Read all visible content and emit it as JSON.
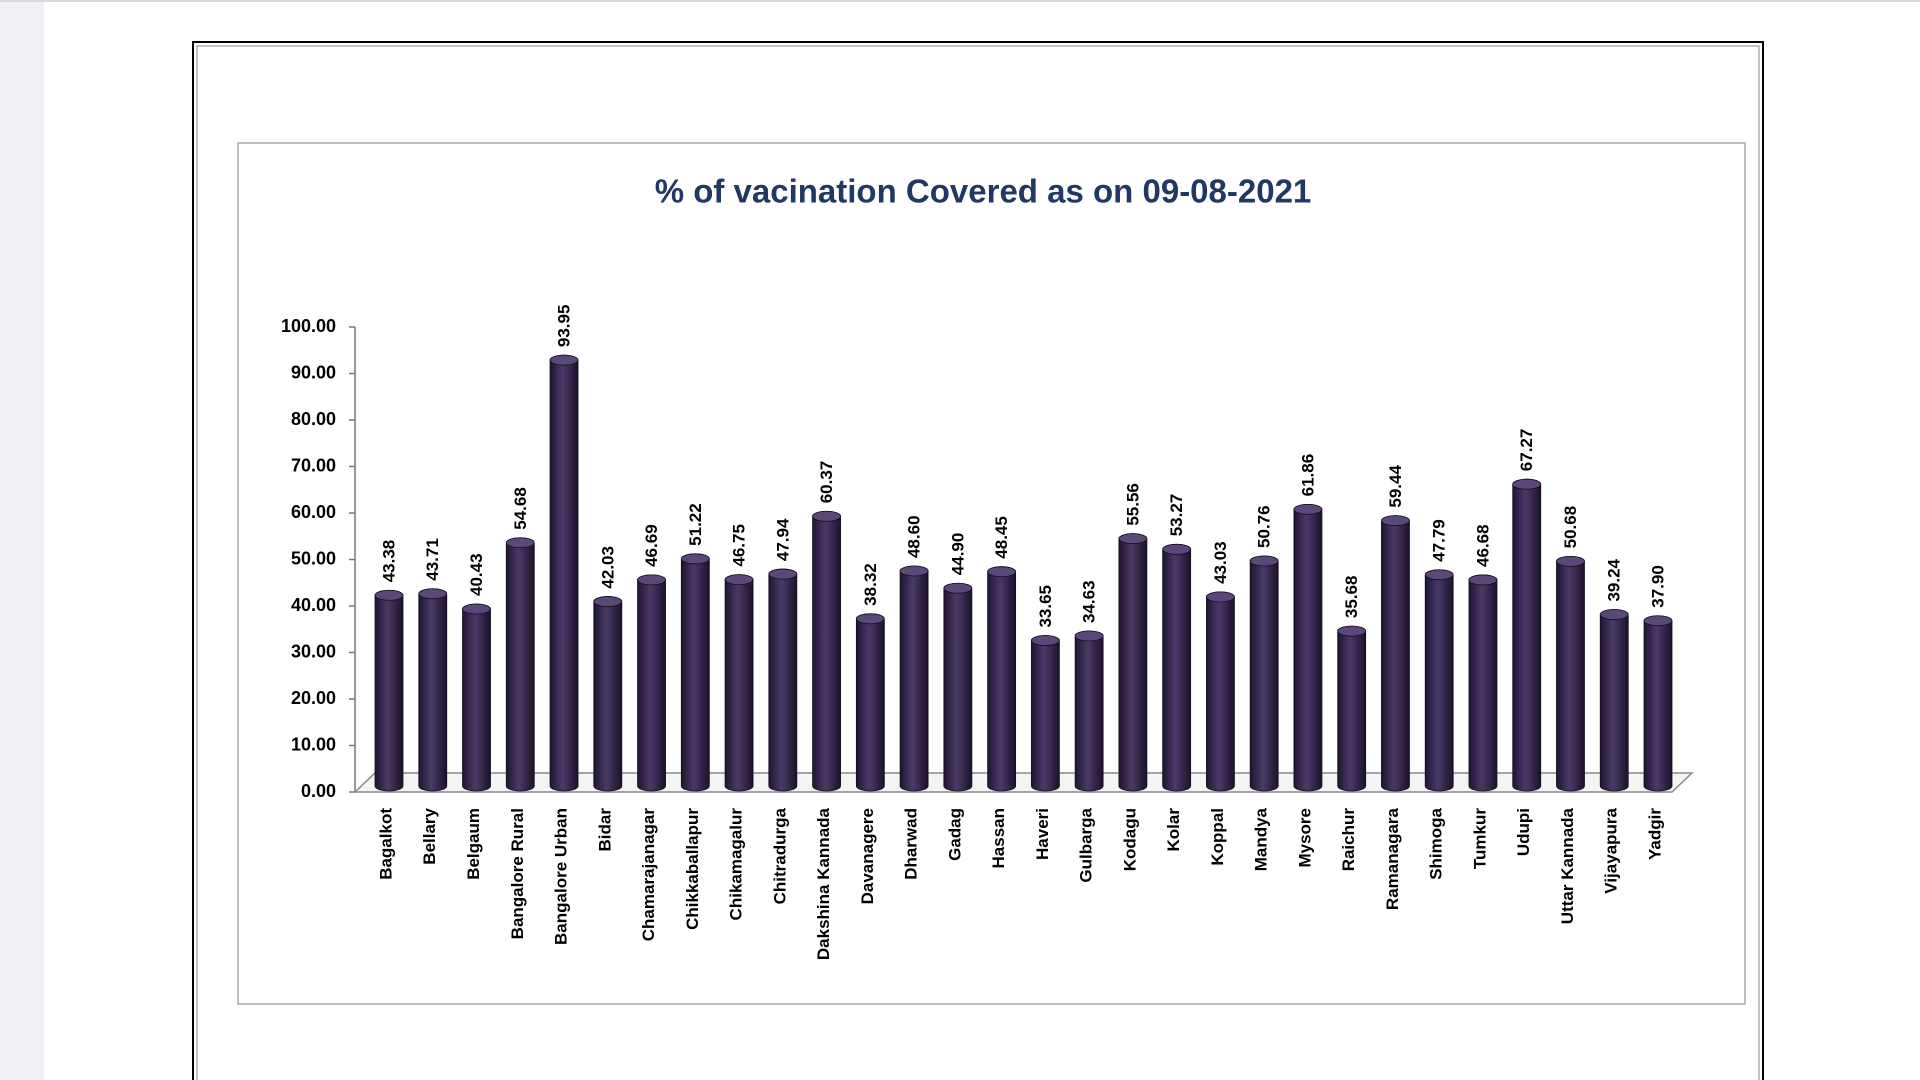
{
  "chart_data": {
    "type": "bar",
    "title": "% of vacination Covered as on 09-08-2021",
    "categories": [
      "Bagalkot",
      "Bellary",
      "Belgaum",
      "Bangalore Rural",
      "Bangalore Urban",
      "Bidar",
      "Chamarajanagar",
      "Chikkaballapur",
      "Chikamagalur",
      "Chitradurga",
      "Dakshina Kannada",
      "Davanagere",
      "Dharwad",
      "Gadag",
      "Hassan",
      "Haveri",
      "Gulbarga",
      "Kodagu",
      "Kolar",
      "Koppal",
      "Mandya",
      "Mysore",
      "Raichur",
      "Ramanagara",
      "Shimoga",
      "Tumkur",
      "Udupi",
      "Uttar Kannada",
      "Vijayapura",
      "Yadgir"
    ],
    "values": [
      43.38,
      43.71,
      40.43,
      54.68,
      93.95,
      42.03,
      46.69,
      51.22,
      46.75,
      47.94,
      60.37,
      38.32,
      48.6,
      44.9,
      48.45,
      33.65,
      34.63,
      55.56,
      53.27,
      43.03,
      50.76,
      61.86,
      35.68,
      59.44,
      47.79,
      46.68,
      67.27,
      50.68,
      39.24,
      37.9
    ],
    "value_labels": [
      "43.38",
      "43.71",
      "40.43",
      "54.68",
      "93.95",
      "42.03",
      "46.69",
      "51.22",
      "46.75",
      "47.94",
      "60.37",
      "38.32",
      "48.60",
      "44.90",
      "48.45",
      "33.65",
      "34.63",
      "55.56",
      "53.27",
      "43.03",
      "50.76",
      "61.86",
      "35.68",
      "59.44",
      "47.79",
      "46.68",
      "67.27",
      "50.68",
      "39.24",
      "37.90"
    ],
    "color": "#3b2c55",
    "ylim": [
      0,
      100
    ],
    "yticks": [
      {
        "value": 0,
        "label": "0.00"
      },
      {
        "value": 10,
        "label": "10.00"
      },
      {
        "value": 20,
        "label": "20.00"
      },
      {
        "value": 30,
        "label": "30.00"
      },
      {
        "value": 40,
        "label": "40.00"
      },
      {
        "value": 50,
        "label": "50.00"
      },
      {
        "value": 60,
        "label": "60.00"
      },
      {
        "value": 70,
        "label": "70.00"
      },
      {
        "value": 80,
        "label": "80.00"
      },
      {
        "value": 90,
        "label": "90.00"
      },
      {
        "value": 100,
        "label": "100.00"
      }
    ],
    "grid": false
  }
}
